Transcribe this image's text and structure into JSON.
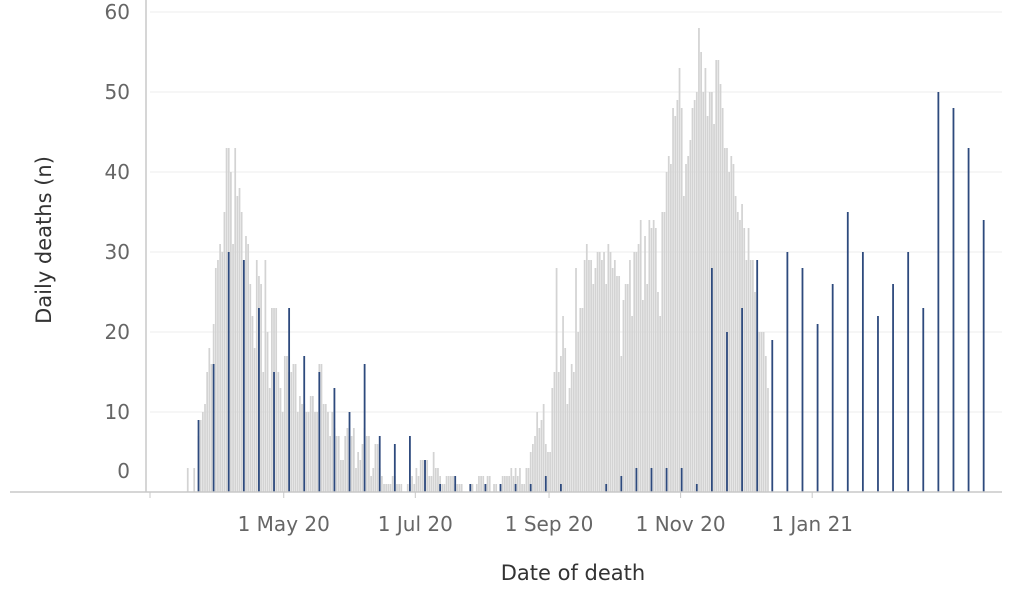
{
  "chart_data": {
    "type": "bar",
    "title": "",
    "xlabel": "Date of death",
    "ylabel": "Daily deaths (n)",
    "ylim": [
      0,
      60
    ],
    "yticks": [
      0,
      10,
      20,
      30,
      40,
      50,
      60
    ],
    "grid": true,
    "x_start_date": "2020-03-01",
    "xlim": [
      "2020-02-29",
      "2021-03-30"
    ],
    "xticks": [
      {
        "date": "2020-05-01",
        "label": "1 May 20"
      },
      {
        "date": "2020-07-01",
        "label": "1 Jul 20"
      },
      {
        "date": "2020-09-01",
        "label": "1 Sep 20"
      },
      {
        "date": "2020-11-01",
        "label": "1 Nov 20"
      },
      {
        "date": "2021-01-01",
        "label": "1 Jan 21"
      }
    ],
    "colors": {
      "daily": "#d3d3d3",
      "weekly": "#2e4a7d"
    },
    "series": [
      {
        "name": "Daily deaths",
        "values": [
          0,
          0,
          0,
          0,
          0,
          0,
          0,
          0,
          0,
          0,
          0,
          0,
          0,
          0,
          0,
          0,
          3,
          0,
          0,
          3,
          0,
          7,
          9,
          10,
          11,
          15,
          18,
          16,
          21,
          28,
          29,
          31,
          30,
          35,
          43,
          43,
          40,
          31,
          43,
          37,
          38,
          35,
          29,
          32,
          31,
          26,
          22,
          18,
          29,
          27,
          26,
          15,
          29,
          20,
          13,
          23,
          23,
          23,
          15,
          13,
          10,
          17,
          17,
          15,
          15,
          16,
          16,
          10,
          12,
          11,
          11,
          10,
          10,
          12,
          12,
          10,
          10,
          16,
          16,
          11,
          11,
          10,
          7,
          10,
          8,
          7,
          7,
          4,
          4,
          7,
          8,
          7,
          7,
          8,
          3,
          5,
          4,
          6,
          8,
          7,
          7,
          2,
          3,
          6,
          6,
          3,
          2,
          1,
          1,
          1,
          1,
          2,
          2,
          1,
          1,
          1,
          0,
          0,
          1,
          1,
          2,
          1,
          3,
          2,
          4,
          4,
          4,
          4,
          2,
          2,
          5,
          3,
          3,
          2,
          1,
          1,
          2,
          2,
          2,
          2,
          1,
          1,
          1,
          1,
          0,
          0,
          0,
          1,
          1,
          0,
          1,
          2,
          2,
          2,
          1,
          2,
          2,
          0,
          1,
          1,
          0,
          0,
          2,
          2,
          2,
          2,
          3,
          2,
          3,
          2,
          3,
          1,
          1,
          3,
          3,
          5,
          6,
          7,
          10,
          8,
          9,
          11,
          6,
          5,
          5,
          13,
          15,
          28,
          15,
          17,
          22,
          18,
          11,
          13,
          16,
          15,
          28,
          20,
          23,
          23,
          29,
          31,
          29,
          29,
          26,
          28,
          30,
          30,
          29,
          30,
          26,
          31,
          30,
          28,
          29,
          27,
          27,
          17,
          24,
          26,
          26,
          29,
          22,
          30,
          30,
          31,
          34,
          24,
          32,
          26,
          34,
          33,
          34,
          33,
          25,
          22,
          35,
          35,
          40,
          42,
          41,
          48,
          47,
          49,
          53,
          48,
          37,
          41,
          42,
          44,
          48,
          49,
          50,
          58,
          55,
          50,
          53,
          47,
          50,
          50,
          46,
          54,
          54,
          51,
          48,
          43,
          43,
          40,
          42,
          41,
          37,
          35,
          34,
          36,
          33,
          29,
          33,
          29,
          29,
          25,
          24,
          20,
          20,
          20,
          17,
          13
        ]
      },
      {
        "name": "Weekly",
        "dates": [
          "2020-03-22",
          "2020-03-29",
          "2020-04-05",
          "2020-04-12",
          "2020-04-19",
          "2020-04-26",
          "2020-05-03",
          "2020-05-10",
          "2020-05-17",
          "2020-05-24",
          "2020-05-31",
          "2020-06-07",
          "2020-06-14",
          "2020-06-21",
          "2020-06-28",
          "2020-07-05",
          "2020-07-12",
          "2020-07-19",
          "2020-07-26",
          "2020-08-02",
          "2020-08-09",
          "2020-08-16",
          "2020-08-23",
          "2020-08-30",
          "2020-09-06",
          "2020-09-13",
          "2020-09-20",
          "2020-09-27",
          "2020-10-04",
          "2020-10-11",
          "2020-10-18",
          "2020-10-25",
          "2020-11-01",
          "2020-11-08",
          "2020-11-15",
          "2020-11-22",
          "2020-11-29",
          "2020-12-06",
          "2020-12-13",
          "2020-12-20",
          "2020-12-27",
          "2021-01-03",
          "2021-01-10",
          "2021-01-17",
          "2021-01-24",
          "2021-01-31",
          "2021-02-07",
          "2021-02-14",
          "2021-02-21",
          "2021-02-28",
          "2021-03-07",
          "2021-03-14",
          "2021-03-21"
        ],
        "values": [
          9,
          16,
          30,
          29,
          23,
          15,
          23,
          17,
          15,
          13,
          10,
          16,
          7,
          6,
          7,
          4,
          1,
          2,
          1,
          1,
          1,
          1,
          1,
          2,
          1,
          0,
          0,
          1,
          2,
          3,
          3,
          3,
          3,
          1,
          28,
          20,
          23,
          29,
          19,
          30,
          28,
          21,
          26,
          35,
          30,
          22,
          26,
          30,
          23,
          50,
          48,
          43,
          34
        ]
      }
    ]
  }
}
